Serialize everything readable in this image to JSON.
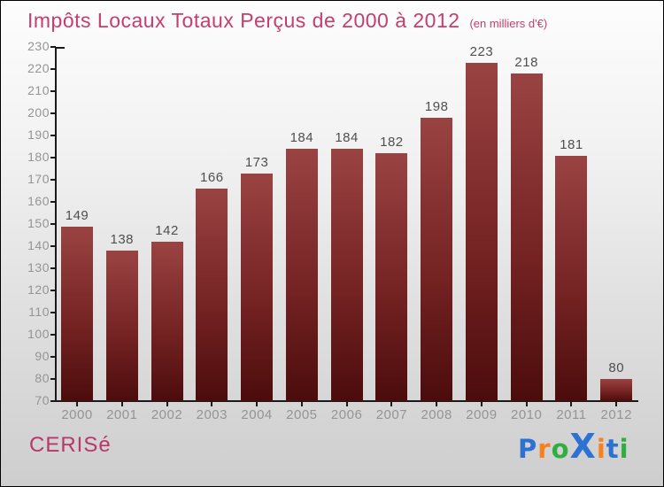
{
  "title": {
    "text": "Impôts Locaux Totaux Perçus de 2000 à 2012",
    "subtitle": "(en milliers d'€)"
  },
  "colors": {
    "accent": "#c63d6e",
    "brand": "#b8376a",
    "axis_line": "#1a1a1a",
    "axis_label": "#949494",
    "value_label": "#4f4f4f",
    "bar_top": "#9a4343",
    "bar_mid": "#762323",
    "bar_bottom": "#4c0c0c"
  },
  "footer": {
    "brand": "CERISé"
  },
  "logo": {
    "word": "Proxiti",
    "letters": [
      {
        "ch": "P",
        "color": "#2d72d2",
        "big": false
      },
      {
        "ch": "r",
        "color": "#f5821f",
        "big": false
      },
      {
        "ch": "o",
        "color": "#2fae42",
        "big": false
      },
      {
        "ch": "X",
        "color": "#2d72d2",
        "big": true
      },
      {
        "ch": "i",
        "color": "#f5821f",
        "big": false
      },
      {
        "ch": "t",
        "color": "#2d72d2",
        "big": false
      },
      {
        "ch": "i",
        "color": "#2fae42",
        "big": false
      }
    ]
  },
  "chart_data": {
    "type": "bar",
    "title": "Impôts Locaux Totaux Perçus de 2000 à 2012",
    "subtitle": "(en milliers d'€)",
    "categories": [
      "2000",
      "2001",
      "2002",
      "2003",
      "2004",
      "2005",
      "2006",
      "2007",
      "2008",
      "2009",
      "2010",
      "2011",
      "2012"
    ],
    "values": [
      149,
      138,
      142,
      166,
      173,
      184,
      184,
      182,
      198,
      223,
      218,
      181,
      80
    ],
    "xlabel": "",
    "ylabel": "",
    "ylim": [
      70,
      230
    ],
    "ytick_step": 10,
    "grid": false,
    "legend": null,
    "value_labels_shown": true
  }
}
